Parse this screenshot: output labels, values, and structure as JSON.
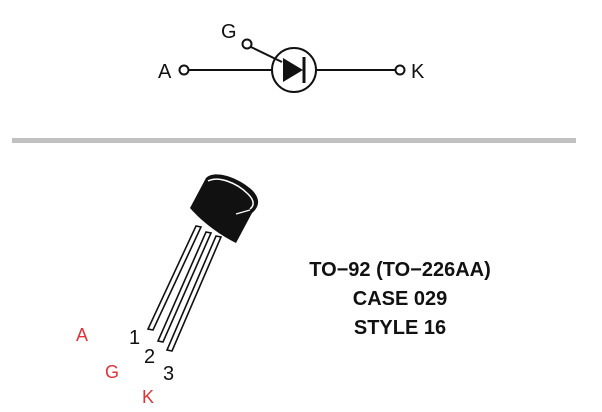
{
  "symbol": {
    "pin_anode": "A",
    "pin_gate": "G",
    "pin_cathode": "K"
  },
  "package": {
    "pin_numbers": [
      "1",
      "2",
      "3"
    ],
    "pin_aliases": [
      "A",
      "G",
      "K"
    ],
    "lines": [
      "TO−92 (TO−226AA)",
      "CASE 029",
      "STYLE 16"
    ]
  },
  "colors": {
    "ink": "#111111",
    "divider": "#c0c0c0",
    "alias": "#e0333a"
  }
}
